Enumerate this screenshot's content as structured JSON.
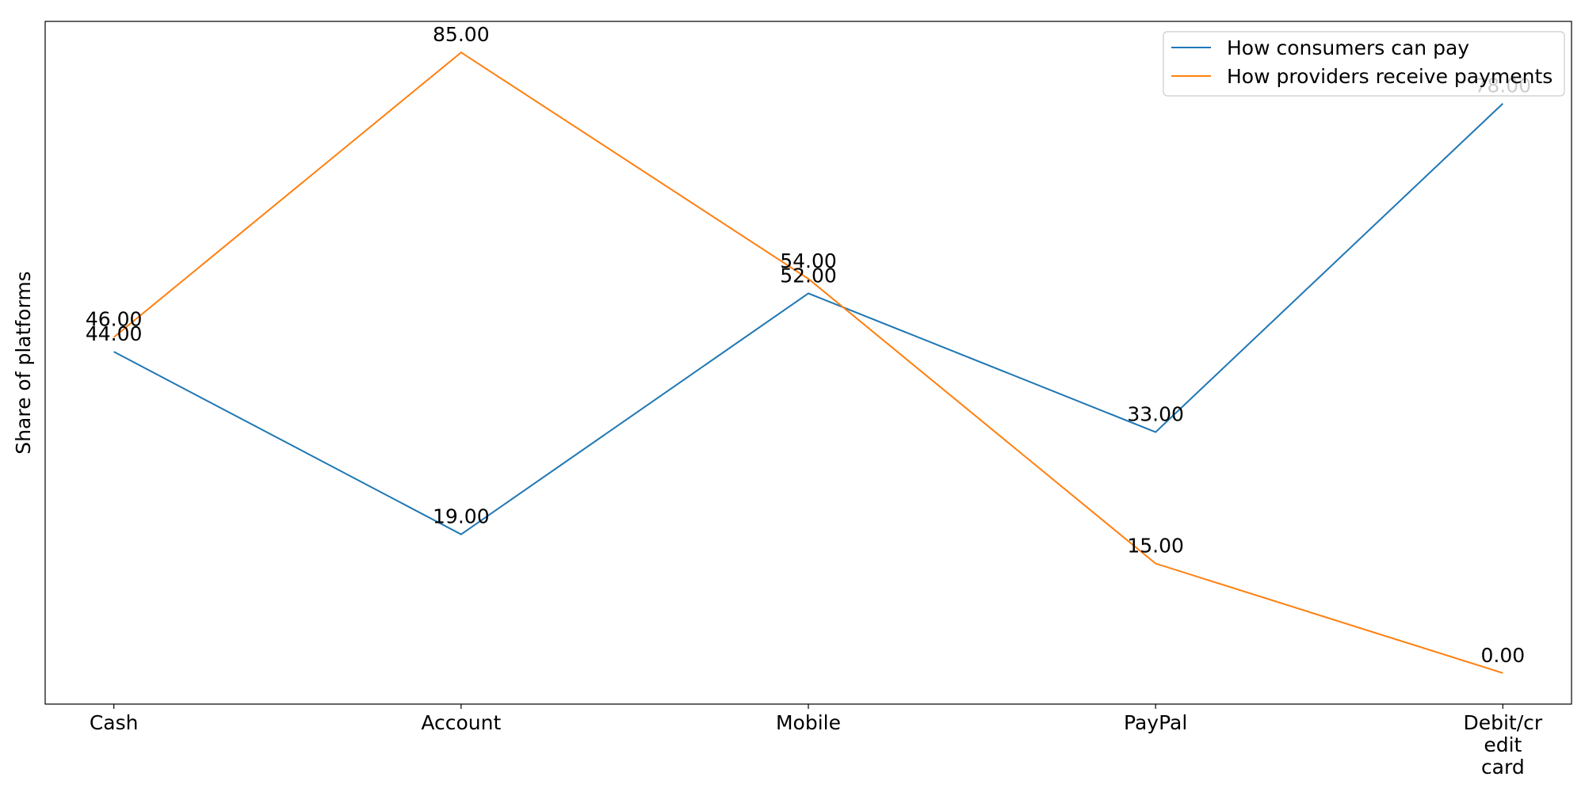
{
  "chart_data": {
    "type": "line",
    "title": "",
    "xlabel": "",
    "ylabel": "Share of platforms",
    "categories": [
      "Cash",
      "Account",
      "Mobile",
      "PayPal",
      "Debit/credit card"
    ],
    "category_lines": [
      [
        "Cash"
      ],
      [
        "Account"
      ],
      [
        "Mobile"
      ],
      [
        "PayPal"
      ],
      [
        "Debit/cr",
        "edit",
        "card"
      ]
    ],
    "series": [
      {
        "name": "How consumers can pay",
        "color": "#1f77b4",
        "values": [
          44,
          19,
          52,
          33,
          78
        ],
        "labels": [
          "44.00",
          "19.00",
          "52.00",
          "33.00",
          "78.00"
        ]
      },
      {
        "name": "How providers receive payments",
        "color": "#ff7f0e",
        "values": [
          46,
          85,
          54,
          15,
          0
        ],
        "labels": [
          "46.00",
          "85.00",
          "54.00",
          "15.00",
          "0.00"
        ]
      }
    ],
    "ylim": [
      -4.25,
      89.25
    ],
    "grid": false,
    "legend_position": "top-right",
    "yticks_visible": false
  }
}
